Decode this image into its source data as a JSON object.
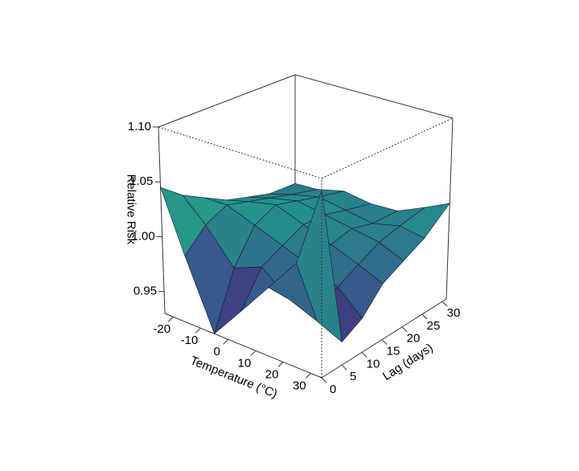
{
  "chart_data": {
    "type": "surface",
    "xlabel": "Temperature (°C)",
    "ylabel": "Lag (days)",
    "zlabel": "Relative Risk",
    "x": [
      -23,
      -15,
      -5,
      5,
      15,
      25,
      34
    ],
    "y": [
      0,
      5,
      10,
      15,
      20,
      25,
      31
    ],
    "z": [
      [
        1.045,
        1.03,
        1.02,
        1.01,
        1.005,
        1.0,
        1.0
      ],
      [
        0.99,
        1.01,
        1.02,
        1.015,
        1.01,
        1.005,
        1.0
      ],
      [
        0.93,
        0.98,
        1.01,
        1.02,
        1.015,
        1.01,
        1.005
      ],
      [
        0.96,
        0.99,
        1.0,
        1.01,
        1.01,
        1.005,
        1.0
      ],
      [
        0.99,
        0.97,
        0.99,
        1.0,
        1.005,
        1.0,
        1.0
      ],
      [
        1.02,
        0.96,
        0.98,
        0.99,
        1.0,
        1.005,
        1.01
      ],
      [
        1.09,
        0.95,
        0.96,
        0.98,
        0.99,
        1.0,
        1.02
      ]
    ],
    "xlim": [
      -23,
      34
    ],
    "ylim": [
      0,
      31
    ],
    "zlim": [
      0.93,
      1.1
    ],
    "xticks": [
      -20,
      -10,
      0,
      10,
      20,
      30
    ],
    "yticks": [
      0,
      5,
      10,
      15,
      20,
      25,
      30
    ],
    "zticks": [
      0.95,
      {
        "value": 1,
        "label": "1.00"
      },
      1.05,
      {
        "value": 1.1,
        "label": "1.10"
      }
    ],
    "colormap": [
      "#440154",
      "#3b528b",
      "#21918c",
      "#5ec962",
      "#fde725"
    ]
  }
}
